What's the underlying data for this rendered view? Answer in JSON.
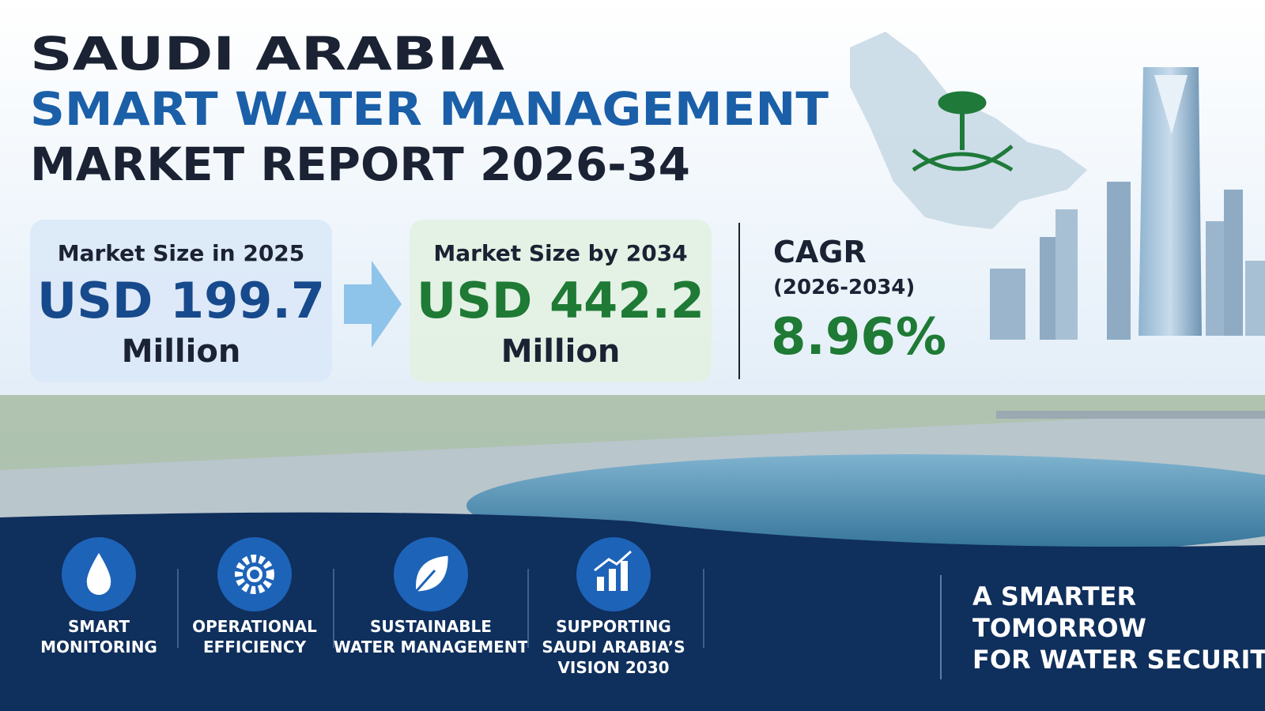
{
  "title": {
    "line1": "SAUDI ARABIA",
    "line2": "SMART WATER MANAGEMENT",
    "line3": "MARKET REPORT 2026-34"
  },
  "stats": [
    {
      "label": "Market Size in 2025",
      "value": "USD 199.7",
      "unit": "Million"
    },
    {
      "label": "Market Size by 2034",
      "value": "USD 442.2",
      "unit": "Million"
    }
  ],
  "cagr": {
    "label": "CAGR",
    "period": "(2026-2034)",
    "value": "8.96%"
  },
  "features": [
    {
      "lines": [
        "SMART",
        "MONITORING"
      ]
    },
    {
      "lines": [
        "OPERATIONAL",
        "EFFICIENCY"
      ]
    },
    {
      "lines": [
        "SUSTAINABLE",
        "WATER MANAGEMENT"
      ]
    },
    {
      "lines": [
        "SUPPORTING",
        "SAUDI ARABIA’S",
        "VISION 2030"
      ]
    }
  ],
  "tagline": [
    "A SMARTER",
    "TOMORROW",
    "FOR WATER SECURITY"
  ]
}
